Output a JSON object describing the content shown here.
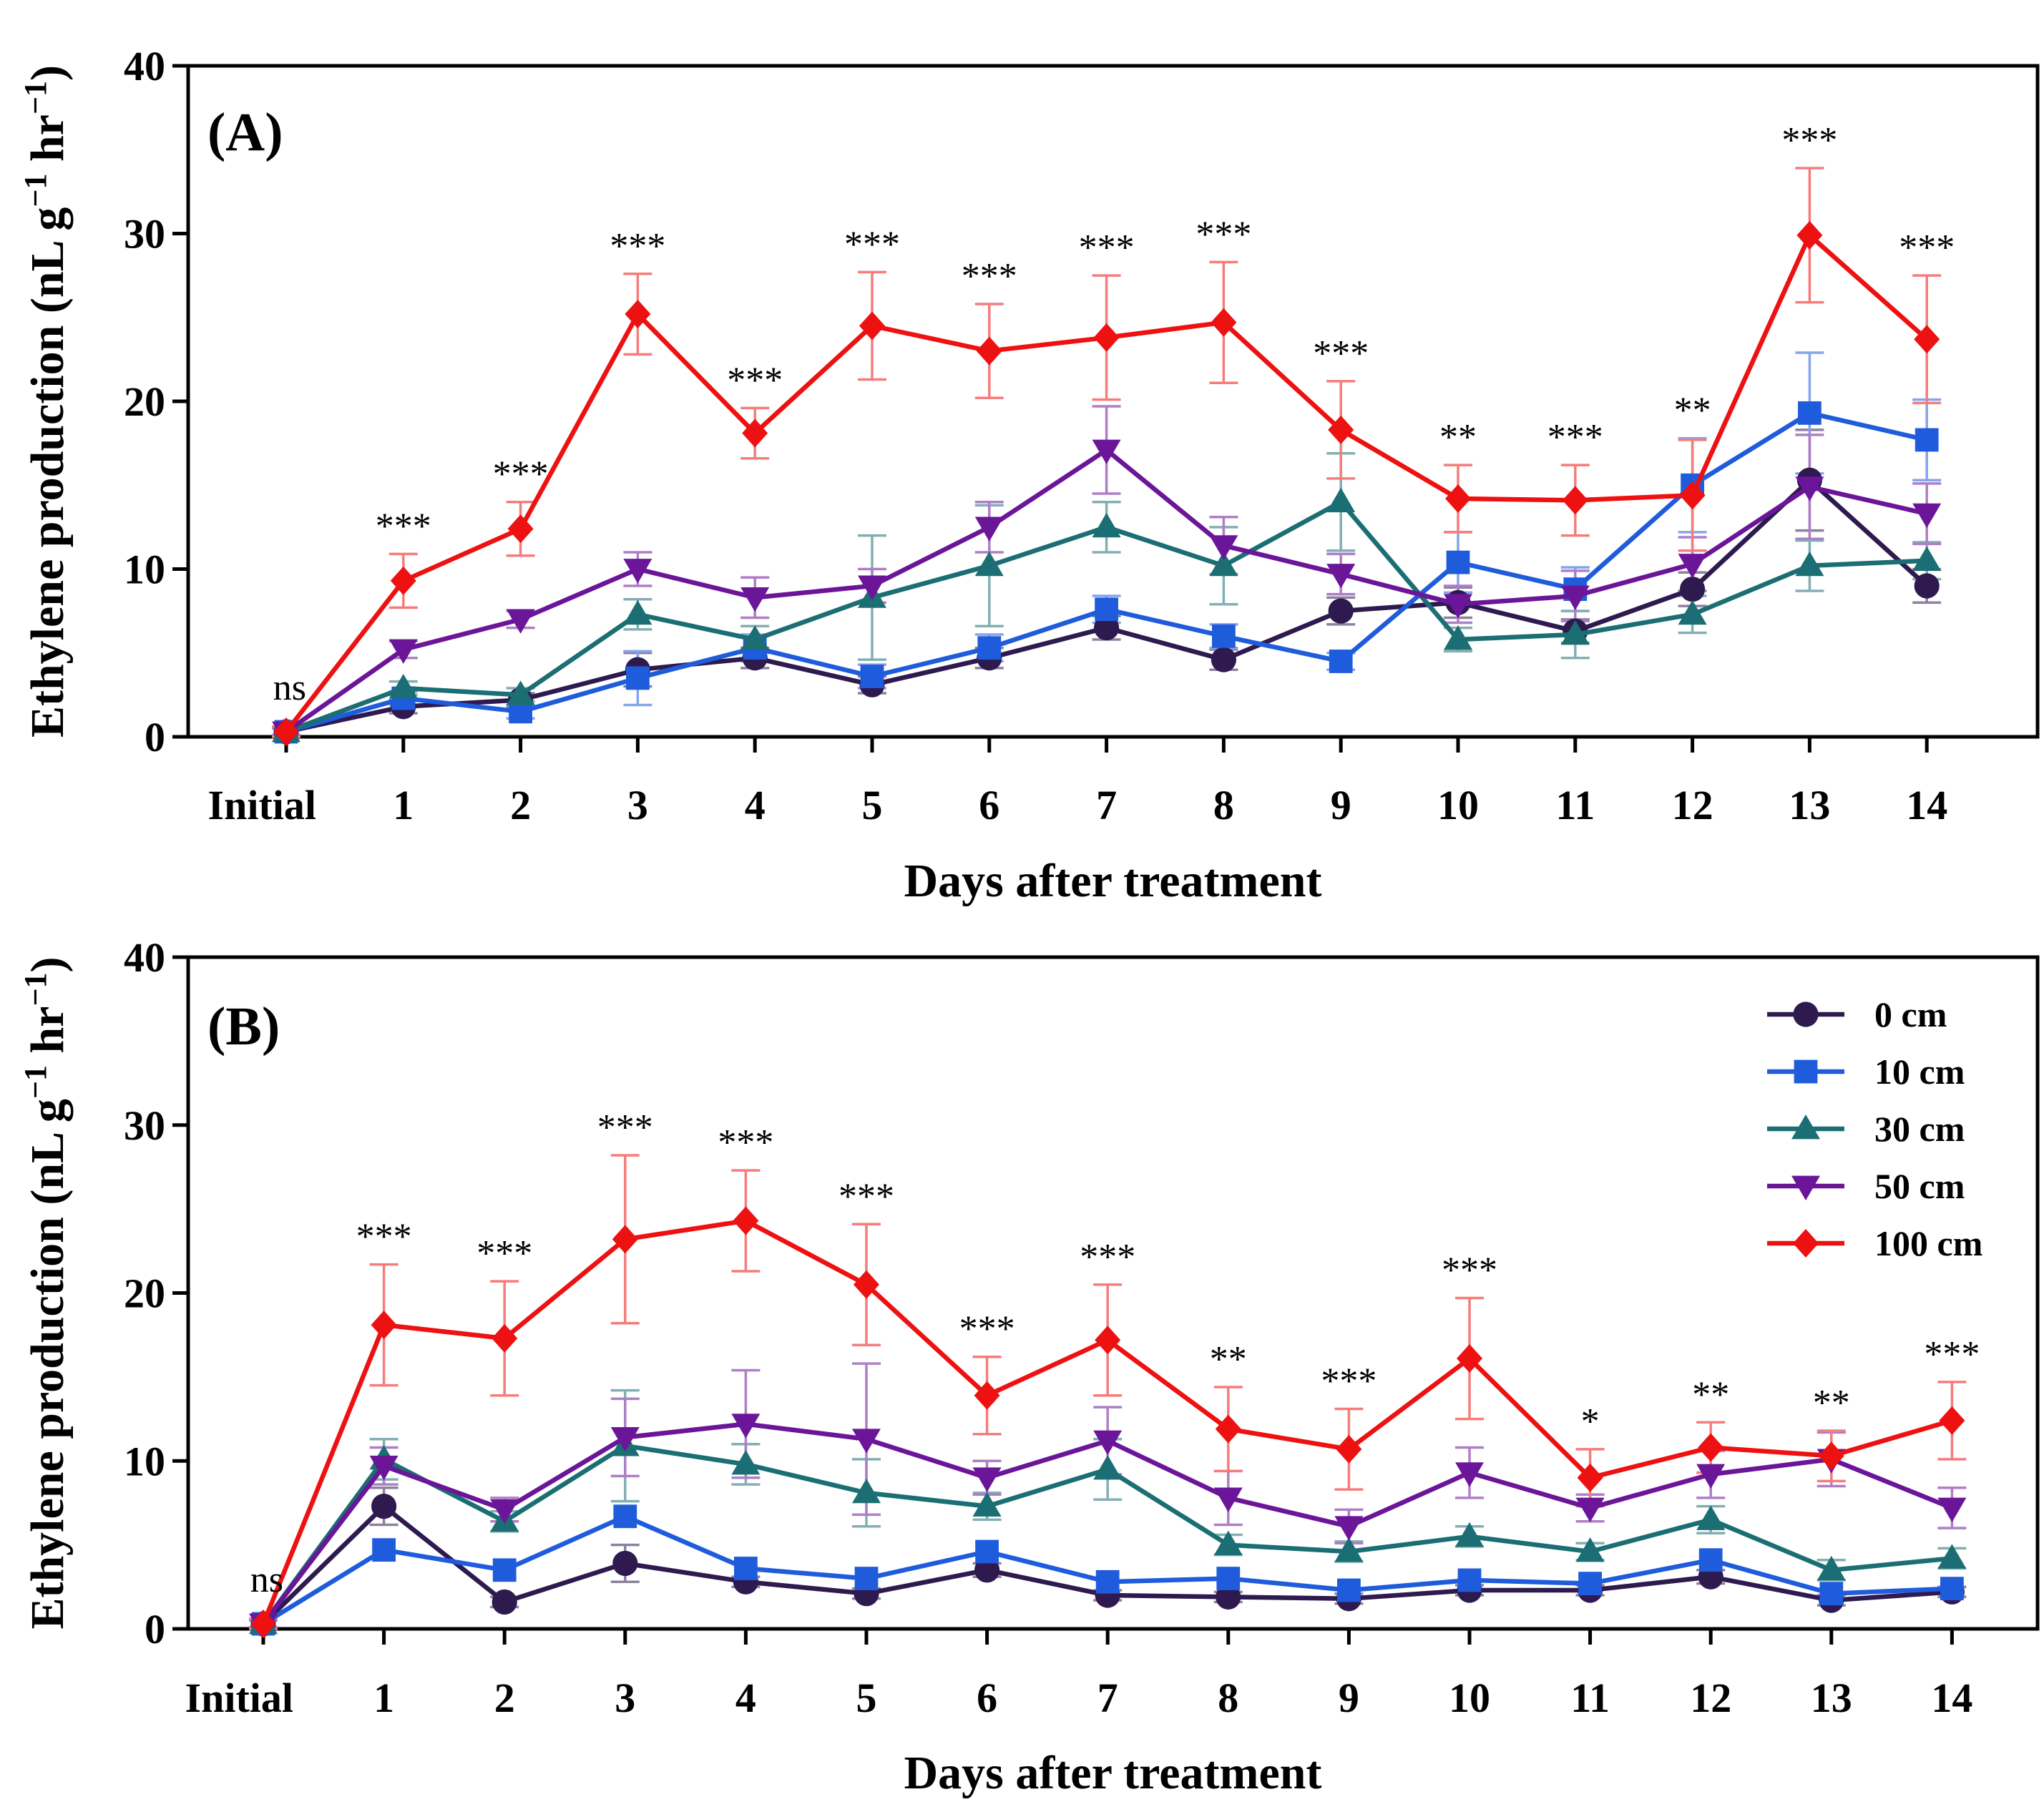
{
  "chart_data": [
    {
      "type": "line",
      "panel_label": "(A)",
      "xlabel": "Days after treatment",
      "ylabel": "Ethylene production (nL g",
      "ylabel_sup1": "−1",
      "ylabel_mid": " hr",
      "ylabel_sup2": "−1",
      "ylabel_end": ")",
      "ylim": [
        0,
        40
      ],
      "yticks": [
        "0",
        "10",
        "20",
        "30",
        "40"
      ],
      "categories": [
        "Initial",
        "1",
        "2",
        "3",
        "4",
        "5",
        "6",
        "7",
        "8",
        "9",
        "10",
        "11",
        "12",
        "13",
        "14"
      ],
      "series": [
        {
          "name": "0 cm",
          "color": "#2e1a4f",
          "marker": "circle",
          "values": [
            0.3,
            1.8,
            2.2,
            4.0,
            4.7,
            3.1,
            4.7,
            6.5,
            4.6,
            7.5,
            8.0,
            6.3,
            8.8,
            15.3,
            9.0
          ],
          "errors": [
            0.2,
            0.4,
            0.4,
            1.0,
            0.6,
            0.5,
            0.6,
            0.7,
            0.6,
            0.8,
            0.9,
            0.7,
            1.0,
            3.0,
            1.0
          ]
        },
        {
          "name": "10 cm",
          "color": "#1f5cdc",
          "marker": "square",
          "values": [
            0.3,
            2.3,
            1.5,
            3.5,
            5.3,
            3.6,
            5.3,
            7.6,
            6.0,
            4.5,
            10.4,
            8.8,
            15.0,
            19.3,
            17.7
          ],
          "errors": [
            0.2,
            0.4,
            0.4,
            1.6,
            0.8,
            0.7,
            0.8,
            0.8,
            0.7,
            0.5,
            1.8,
            1.3,
            2.8,
            3.6,
            2.4
          ]
        },
        {
          "name": "30 cm",
          "color": "#1b6e73",
          "marker": "triangle-up",
          "values": [
            0.3,
            2.9,
            2.5,
            7.3,
            5.8,
            8.3,
            10.2,
            12.5,
            10.2,
            14.0,
            5.8,
            6.1,
            7.3,
            10.2,
            10.5
          ],
          "errors": [
            0.2,
            0.4,
            0.4,
            0.9,
            0.8,
            3.7,
            3.6,
            1.5,
            2.3,
            2.9,
            0.7,
            1.4,
            1.1,
            1.5,
            1.1
          ]
        },
        {
          "name": "50 cm",
          "color": "#6b1599",
          "marker": "triangle-down",
          "values": [
            0.3,
            5.2,
            7.0,
            10.0,
            8.3,
            9.0,
            12.5,
            17.1,
            11.4,
            9.7,
            7.9,
            8.4,
            10.3,
            14.9,
            13.3
          ],
          "errors": [
            0.2,
            0.5,
            0.5,
            1.0,
            1.2,
            1.0,
            1.5,
            2.6,
            1.7,
            1.2,
            1.1,
            1.5,
            1.6,
            3.1,
            1.8
          ]
        },
        {
          "name": "100 cm",
          "color": "#ee1111",
          "marker": "diamond",
          "values": [
            0.3,
            9.3,
            12.4,
            25.2,
            18.1,
            24.5,
            23.0,
            23.8,
            24.7,
            18.3,
            14.2,
            14.1,
            14.4,
            29.9,
            23.7
          ],
          "errors": [
            0.3,
            1.6,
            1.6,
            2.4,
            1.5,
            3.2,
            2.8,
            3.7,
            3.6,
            2.9,
            2.0,
            2.1,
            3.3,
            4.0,
            3.8
          ]
        }
      ],
      "annotations": [
        "ns",
        "***",
        "***",
        "***",
        "***",
        "***",
        "***",
        "***",
        "***",
        "***",
        "**",
        "***",
        "**",
        "***",
        "***"
      ],
      "legend": null
    },
    {
      "type": "line",
      "panel_label": "(B)",
      "xlabel": "Days after treatment",
      "ylabel": "Ethylene production (nL g",
      "ylabel_sup1": "−1",
      "ylabel_mid": " hr",
      "ylabel_sup2": "−1",
      "ylabel_end": ")",
      "ylim": [
        0,
        40
      ],
      "yticks": [
        "0",
        "10",
        "20",
        "30",
        "40"
      ],
      "categories": [
        "Initial",
        "1",
        "2",
        "3",
        "4",
        "5",
        "6",
        "7",
        "8",
        "9",
        "10",
        "11",
        "12",
        "13",
        "14"
      ],
      "series": [
        {
          "name": "0 cm",
          "color": "#2e1a4f",
          "marker": "circle",
          "values": [
            0.3,
            7.3,
            1.6,
            3.9,
            2.8,
            2.1,
            3.5,
            2.0,
            1.9,
            1.8,
            2.3,
            2.3,
            3.1,
            1.7,
            2.2
          ],
          "errors": [
            0.2,
            1.1,
            0.3,
            1.1,
            0.3,
            0.3,
            0.4,
            0.3,
            0.3,
            0.3,
            0.3,
            0.3,
            0.4,
            0.3,
            0.3
          ]
        },
        {
          "name": "10 cm",
          "color": "#1f5cdc",
          "marker": "square",
          "values": [
            0.3,
            4.7,
            3.5,
            6.7,
            3.6,
            3.0,
            4.6,
            2.8,
            3.0,
            2.3,
            2.9,
            2.7,
            4.1,
            2.1,
            2.4
          ]
        },
        {
          "name": "30 cm",
          "color": "#1b6e73",
          "marker": "triangle-up",
          "values": [
            0.3,
            10.1,
            6.4,
            10.9,
            9.8,
            8.1,
            7.3,
            9.5,
            5.0,
            4.6,
            5.5,
            4.6,
            6.5,
            3.5,
            4.2
          ],
          "errors": [
            0.2,
            1.2,
            0.6,
            3.3,
            1.2,
            2.0,
            0.8,
            1.8,
            0.6,
            0.6,
            0.6,
            0.5,
            0.8,
            0.6,
            0.6
          ]
        },
        {
          "name": "50 cm",
          "color": "#6b1599",
          "marker": "triangle-down",
          "values": [
            0.3,
            9.7,
            7.1,
            11.4,
            12.2,
            11.3,
            9.0,
            11.2,
            7.8,
            6.1,
            9.3,
            7.2,
            9.2,
            10.1,
            7.2
          ],
          "errors": [
            0.2,
            1.1,
            0.7,
            2.3,
            3.2,
            4.5,
            1.0,
            2.0,
            1.6,
            1.0,
            1.5,
            0.8,
            1.4,
            1.6,
            1.2
          ]
        },
        {
          "name": "100 cm",
          "color": "#ee1111",
          "marker": "diamond",
          "values": [
            0.3,
            18.1,
            17.3,
            23.2,
            24.3,
            20.5,
            13.9,
            17.2,
            11.9,
            10.7,
            16.1,
            9.0,
            10.8,
            10.3,
            12.4
          ],
          "errors": [
            0.3,
            3.6,
            3.4,
            5.0,
            3.0,
            3.6,
            2.3,
            3.3,
            2.5,
            2.4,
            3.6,
            1.7,
            1.5,
            1.5,
            2.3
          ]
        }
      ],
      "annotations": [
        "ns",
        "***",
        "***",
        "***",
        "***",
        "***",
        "***",
        "***",
        "**",
        "***",
        "***",
        "*",
        "**",
        "**",
        "***"
      ],
      "legend": {
        "position": "top-right",
        "entries": [
          "0 cm",
          "10 cm",
          "30 cm",
          "50 cm",
          "100 cm"
        ]
      }
    }
  ]
}
